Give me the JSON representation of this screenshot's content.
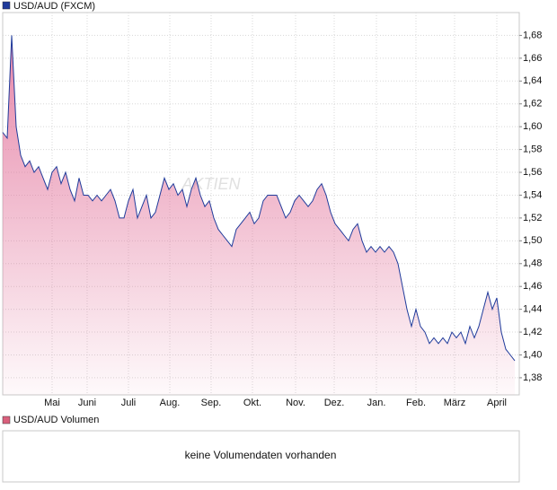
{
  "chart_data": [
    {
      "type": "area",
      "series": [
        {
          "name": "USD/AUD (FXCM)",
          "color": "#1f3b9b",
          "fill_color": "#e2729a",
          "values": [
            1.595,
            1.59,
            1.68,
            1.6,
            1.575,
            1.565,
            1.57,
            1.56,
            1.565,
            1.555,
            1.545,
            1.56,
            1.565,
            1.55,
            1.56,
            1.545,
            1.535,
            1.555,
            1.54,
            1.54,
            1.535,
            1.54,
            1.535,
            1.54,
            1.545,
            1.535,
            1.52,
            1.52,
            1.535,
            1.545,
            1.52,
            1.53,
            1.54,
            1.52,
            1.525,
            1.54,
            1.555,
            1.545,
            1.55,
            1.54,
            1.545,
            1.53,
            1.545,
            1.555,
            1.54,
            1.53,
            1.535,
            1.52,
            1.51,
            1.505,
            1.5,
            1.495,
            1.51,
            1.515,
            1.52,
            1.525,
            1.515,
            1.52,
            1.535,
            1.54,
            1.54,
            1.54,
            1.53,
            1.52,
            1.525,
            1.535,
            1.54,
            1.535,
            1.53,
            1.535,
            1.545,
            1.55,
            1.54,
            1.525,
            1.515,
            1.51,
            1.505,
            1.5,
            1.51,
            1.515,
            1.5,
            1.49,
            1.495,
            1.49,
            1.495,
            1.49,
            1.495,
            1.49,
            1.48,
            1.46,
            1.44,
            1.425,
            1.44,
            1.425,
            1.42,
            1.41,
            1.415,
            1.41,
            1.415,
            1.41,
            1.42,
            1.415,
            1.42,
            1.41,
            1.425,
            1.415,
            1.425,
            1.44,
            1.455,
            1.44,
            1.45,
            1.42,
            1.405,
            1.4,
            1.395
          ]
        }
      ],
      "xlim": [
        0,
        115
      ],
      "xticks": [
        {
          "value": 11,
          "label": "Mai"
        },
        {
          "value": 18.8,
          "label": "Juni"
        },
        {
          "value": 28,
          "label": "Juli"
        },
        {
          "value": 37.2,
          "label": "Aug."
        },
        {
          "value": 46.4,
          "label": "Sep."
        },
        {
          "value": 55.6,
          "label": "Okt."
        },
        {
          "value": 65.2,
          "label": "Nov."
        },
        {
          "value": 73.8,
          "label": "Dez."
        },
        {
          "value": 83.2,
          "label": "Jan."
        },
        {
          "value": 92,
          "label": "Feb."
        },
        {
          "value": 100.6,
          "label": "März"
        },
        {
          "value": 110,
          "label": "April"
        }
      ],
      "ylim": [
        1.365,
        1.7
      ],
      "yticks": [
        {
          "value": 1.38,
          "label": "1,38"
        },
        {
          "value": 1.4,
          "label": "1,40"
        },
        {
          "value": 1.42,
          "label": "1,42"
        },
        {
          "value": 1.44,
          "label": "1,44"
        },
        {
          "value": 1.46,
          "label": "1,46"
        },
        {
          "value": 1.48,
          "label": "1,48"
        },
        {
          "value": 1.5,
          "label": "1,50"
        },
        {
          "value": 1.52,
          "label": "1,52"
        },
        {
          "value": 1.54,
          "label": "1,54"
        },
        {
          "value": 1.56,
          "label": "1,56"
        },
        {
          "value": 1.58,
          "label": "1,58"
        },
        {
          "value": 1.6,
          "label": "1,60"
        },
        {
          "value": 1.62,
          "label": "1,62"
        },
        {
          "value": 1.64,
          "label": "1,64"
        },
        {
          "value": 1.66,
          "label": "1,66"
        },
        {
          "value": 1.68,
          "label": "1,68"
        }
      ],
      "grid": true,
      "watermark": "AKTIEN"
    },
    {
      "type": "volume",
      "title": "USD/AUD Volumen",
      "color": "#d9607c",
      "message": "keine Volumendaten vorhanden"
    }
  ]
}
